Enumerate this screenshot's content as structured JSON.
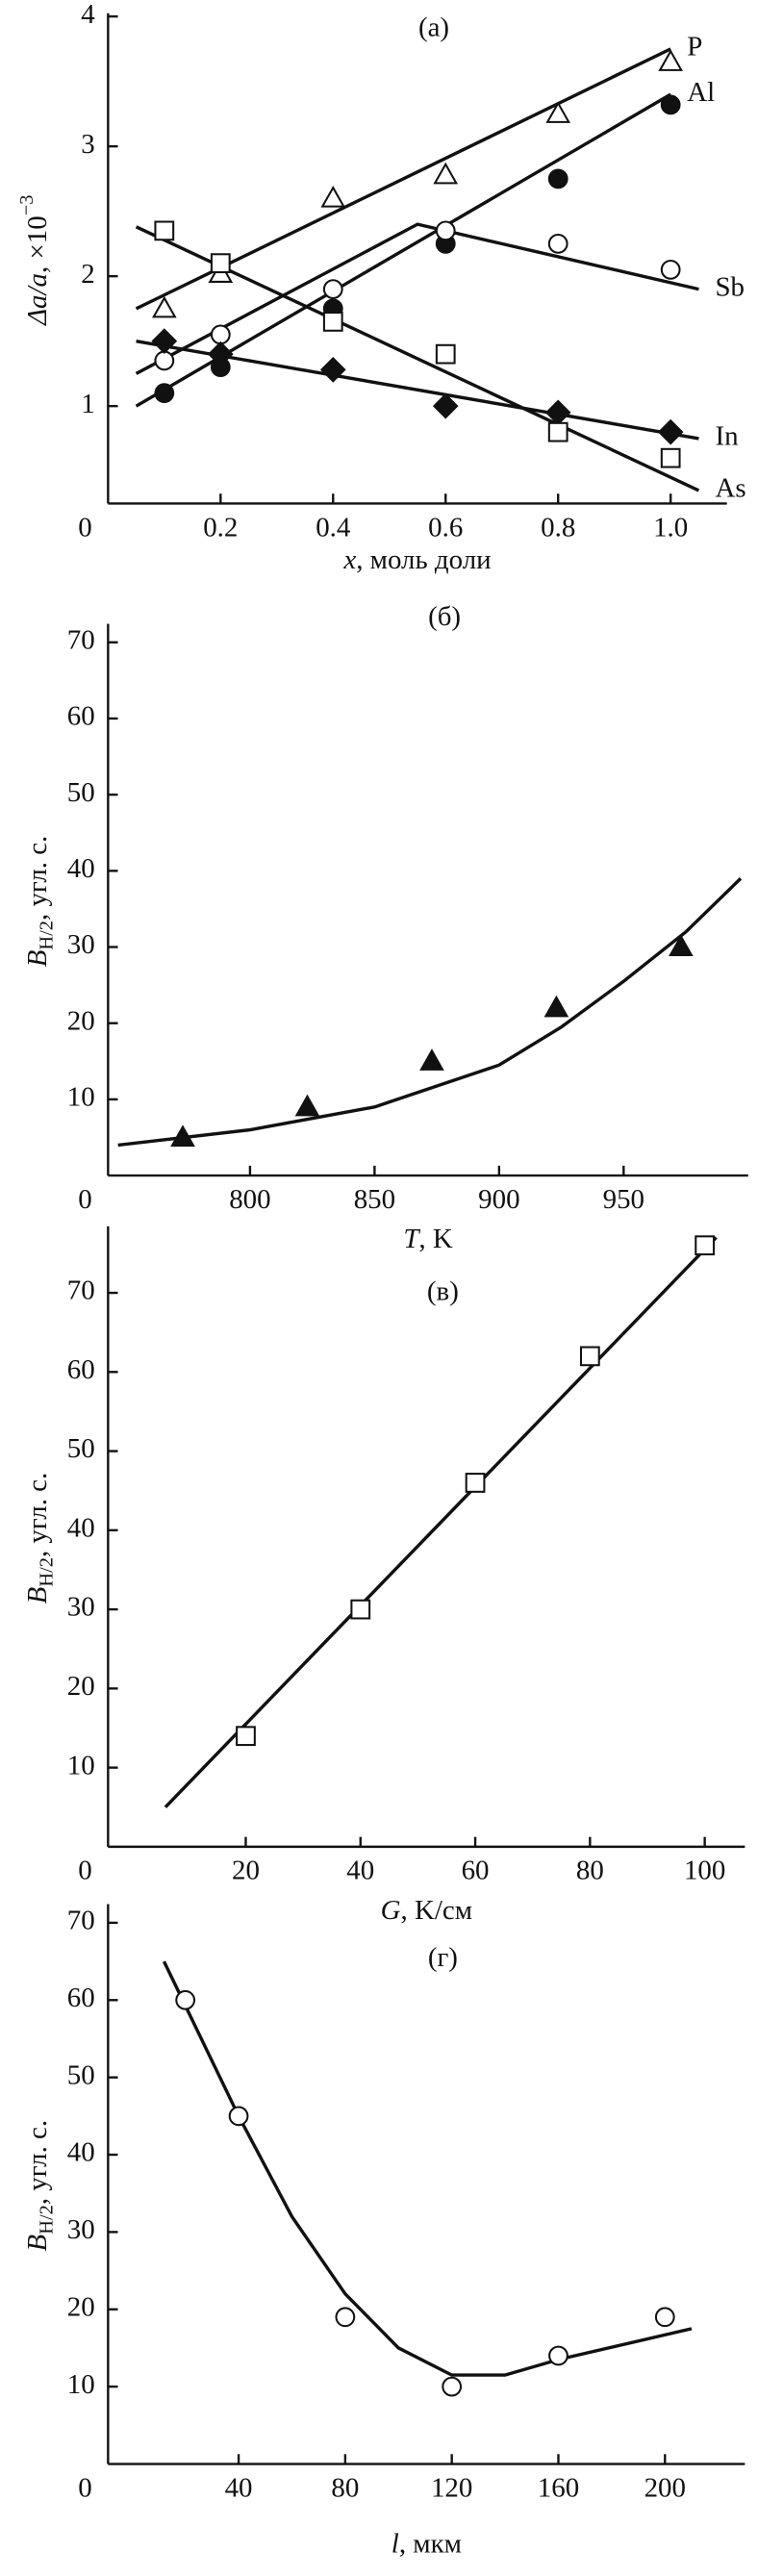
{
  "chart_data": [
    {
      "type": "scatter",
      "title": "(а)",
      "xlabel": {
        "italic": "x",
        "text": ", моль доли"
      },
      "ylabel": {
        "italic": "Δa/a",
        "text": ", ×10",
        "sup": "−3"
      },
      "origin_label": "0",
      "xlim": [
        0,
        1.1
      ],
      "ylim": [
        0.25,
        4
      ],
      "xticks": [
        {
          "value": 0.2,
          "label": "0.2"
        },
        {
          "value": 0.4,
          "label": "0.4"
        },
        {
          "value": 0.6,
          "label": "0.6"
        },
        {
          "value": 0.8,
          "label": "0.8"
        },
        {
          "value": 1.0,
          "label": "1.0"
        }
      ],
      "yticks": [
        1,
        2,
        3,
        4
      ],
      "series": [
        {
          "name": "P",
          "marker": "triangle",
          "filled": false,
          "color": "#111",
          "x": [
            0.1,
            0.2,
            0.4,
            0.6,
            0.8,
            1.0
          ],
          "values": [
            1.75,
            2.02,
            2.6,
            2.78,
            3.25,
            3.65
          ],
          "fit": {
            "x": [
              0.05,
              1.0
            ],
            "y": [
              1.75,
              3.75
            ]
          }
        },
        {
          "name": "Al",
          "marker": "circle",
          "filled": true,
          "color": "#111",
          "x": [
            0.1,
            0.2,
            0.4,
            0.6,
            0.8,
            1.0
          ],
          "values": [
            1.1,
            1.3,
            1.75,
            2.25,
            2.75,
            3.32
          ],
          "fit": {
            "x": [
              0.05,
              1.0
            ],
            "y": [
              1.0,
              3.4
            ]
          }
        },
        {
          "name": "Sb",
          "marker": "circle",
          "filled": false,
          "color": "#111",
          "x": [
            0.1,
            0.2,
            0.4,
            0.6,
            0.8,
            1.0
          ],
          "values": [
            1.35,
            1.55,
            1.9,
            2.35,
            2.25,
            2.05
          ],
          "fit": {
            "x": [
              0.05,
              0.55,
              1.05
            ],
            "y": [
              1.25,
              2.4,
              1.9
            ]
          }
        },
        {
          "name": "In",
          "marker": "diamond",
          "filled": true,
          "color": "#111",
          "x": [
            0.1,
            0.2,
            0.4,
            0.6,
            0.8,
            1.0
          ],
          "values": [
            1.5,
            1.4,
            1.28,
            1.0,
            0.95,
            0.8
          ],
          "fit": {
            "x": [
              0.05,
              1.05
            ],
            "y": [
              1.5,
              0.75
            ]
          }
        },
        {
          "name": "As",
          "marker": "square",
          "filled": false,
          "color": "#111",
          "x": [
            0.1,
            0.2,
            0.4,
            0.6,
            0.8,
            1.0
          ],
          "values": [
            2.35,
            2.1,
            1.65,
            1.4,
            0.8,
            0.6
          ],
          "fit": {
            "x": [
              0.05,
              1.05
            ],
            "y": [
              2.38,
              0.35
            ]
          }
        }
      ]
    },
    {
      "type": "scatter",
      "title": "(б)",
      "xlabel": {
        "italic": "T",
        "text": ", K"
      },
      "ylabel": {
        "italic": "B",
        "sub": "H/2",
        "text": ", угл. с."
      },
      "origin_label": "0",
      "xlim": [
        743,
        1000
      ],
      "ylim": [
        0,
        72
      ],
      "xticks": [
        800,
        850,
        900,
        950
      ],
      "yticks": [
        10,
        20,
        30,
        40,
        50,
        60,
        70
      ],
      "series": [
        {
          "marker": "triangle",
          "filled": true,
          "color": "#111",
          "x": [
            773,
            823,
            873,
            923,
            973
          ],
          "values": [
            5,
            9,
            15,
            22,
            30
          ],
          "fit": {
            "x": [
              747,
              800,
              850,
              900,
              925,
              950,
              975,
              997
            ],
            "y": [
              4,
              6,
              9,
              14.5,
              19.5,
              25.5,
              32,
              39
            ]
          }
        }
      ]
    },
    {
      "type": "scatter",
      "title": "(в)",
      "xlabel": {
        "italic": "G",
        "text": ", K/см"
      },
      "ylabel": {
        "italic": "B",
        "sub": "H/2",
        "text": ", угл. с."
      },
      "origin_label": "0",
      "xlim": [
        -4,
        107
      ],
      "ylim": [
        0,
        78
      ],
      "xticks": [
        20,
        40,
        60,
        80,
        100
      ],
      "yticks": [
        10,
        20,
        30,
        40,
        50,
        60,
        70
      ],
      "series": [
        {
          "marker": "square",
          "filled": false,
          "color": "#111",
          "x": [
            20,
            40,
            60,
            80,
            100
          ],
          "values": [
            14,
            30,
            46,
            62,
            76
          ],
          "fit": {
            "x": [
              6,
              102
            ],
            "y": [
              5,
              77
            ]
          }
        }
      ]
    },
    {
      "type": "scatter",
      "title": "(г)",
      "xlabel": {
        "italic": "l",
        "text": ", мкм"
      },
      "ylabel": {
        "italic": "B",
        "sub": "H/2",
        "text": ", угл. с."
      },
      "origin_label": "0",
      "xlim": [
        -9,
        230
      ],
      "ylim": [
        0,
        72
      ],
      "xticks": [
        40,
        80,
        120,
        160,
        200
      ],
      "yticks": [
        10,
        20,
        30,
        40,
        50,
        60,
        70
      ],
      "series": [
        {
          "marker": "circle",
          "filled": false,
          "color": "#111",
          "x": [
            20,
            40,
            80,
            120,
            160,
            200
          ],
          "values": [
            60,
            45,
            19,
            10,
            14,
            19
          ],
          "fit": {
            "x": [
              12,
              40,
              60,
              80,
              100,
              120,
              140,
              160,
              210
            ],
            "y": [
              65,
              45,
              32,
              22,
              15,
              11.5,
              11.5,
              13.5,
              17.5
            ]
          }
        }
      ]
    }
  ]
}
